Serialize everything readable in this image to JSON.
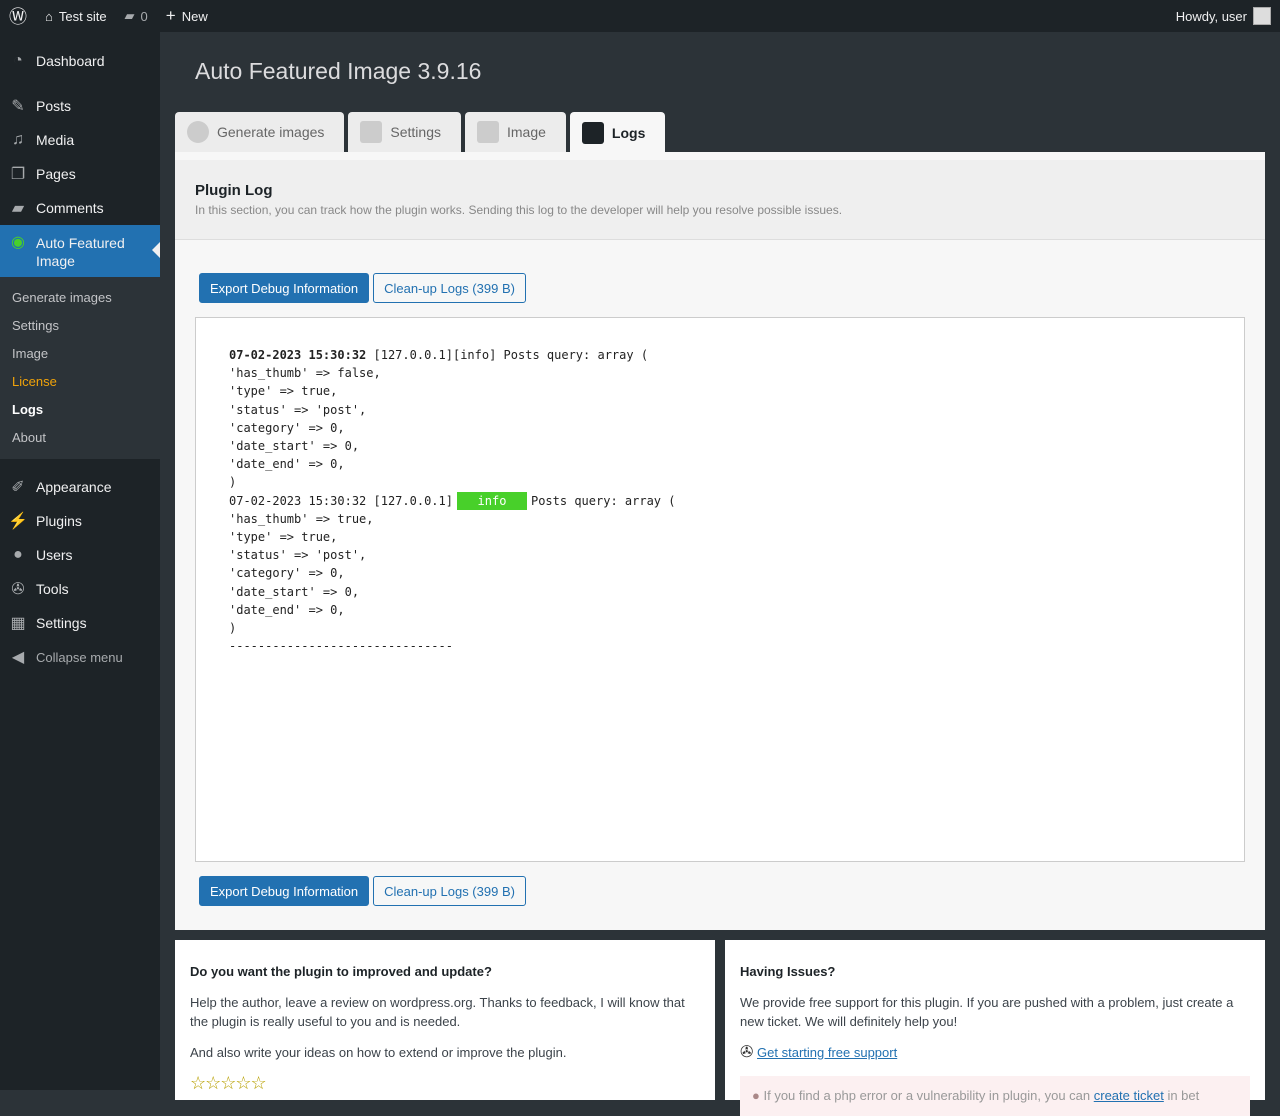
{
  "adminbar": {
    "site": "Test site",
    "comments": "0",
    "new": "New",
    "howdy": "Howdy, user"
  },
  "sidebar": {
    "items": [
      "Dashboard",
      "Posts",
      "Media",
      "Pages",
      "Comments"
    ],
    "current": "Auto Featured Image",
    "sub": [
      "Generate images",
      "Settings",
      "Image",
      "License",
      "Logs",
      "About"
    ],
    "items2": [
      "Appearance",
      "Plugins",
      "Users",
      "Tools",
      "Settings"
    ],
    "collapse": "Collapse menu"
  },
  "page": {
    "title": "Auto Featured Image 3.9.16",
    "tabs": [
      "Generate images",
      "Settings",
      "Image",
      "Logs"
    ],
    "log_title": "Plugin Log",
    "log_desc": "In this section, you can track how the plugin works. Sending this log to the developer will help you resolve possible issues.",
    "export": "Export Debug Information",
    "cleanup": "Clean-up Logs (399 B)",
    "log1_ts": "07-02-2023 15:30:32",
    "log1_rest": " [127.0.0.1][info] Posts query: array (\n'has_thumb' => false,\n'type' => true,\n'status' => 'post',\n'category' => 0,\n'date_start' => 0,\n'date_end' => 0,\n)",
    "log2_pre": "07-02-2023 15:30:32 [127.0.0.1]",
    "log2_badge": "info",
    "log2_rest": "Posts query: array (\n'has_thumb' => true,\n'type' => true,\n'status' => 'post',\n'category' => 0,\n'date_start' => 0,\n'date_end' => 0,\n)\n-------------------------------"
  },
  "boxes": {
    "left_title": "Do you want the plugin to improved and update?",
    "left_p1": "Help the author, leave a review on wordpress.org. Thanks to feedback, I will know that the plugin is really useful to you and is needed.",
    "left_p2": "And also write your ideas on how to extend or improve the plugin.",
    "stars": "☆☆☆☆☆",
    "right_title": "Having Issues?",
    "right_p1": "We provide free support for this plugin. If you are pushed with a problem, just create a new ticket. We will definitely help you!",
    "support_link": "Get starting free support",
    "alert_pre": "If you find a php error or a vulnerability in plugin, you can ",
    "alert_link": "create ticket",
    "alert_post": " in bet"
  },
  "colors": {
    "accent": "#2271b1",
    "badge": "#48d02a",
    "license": "#f0a30a"
  }
}
